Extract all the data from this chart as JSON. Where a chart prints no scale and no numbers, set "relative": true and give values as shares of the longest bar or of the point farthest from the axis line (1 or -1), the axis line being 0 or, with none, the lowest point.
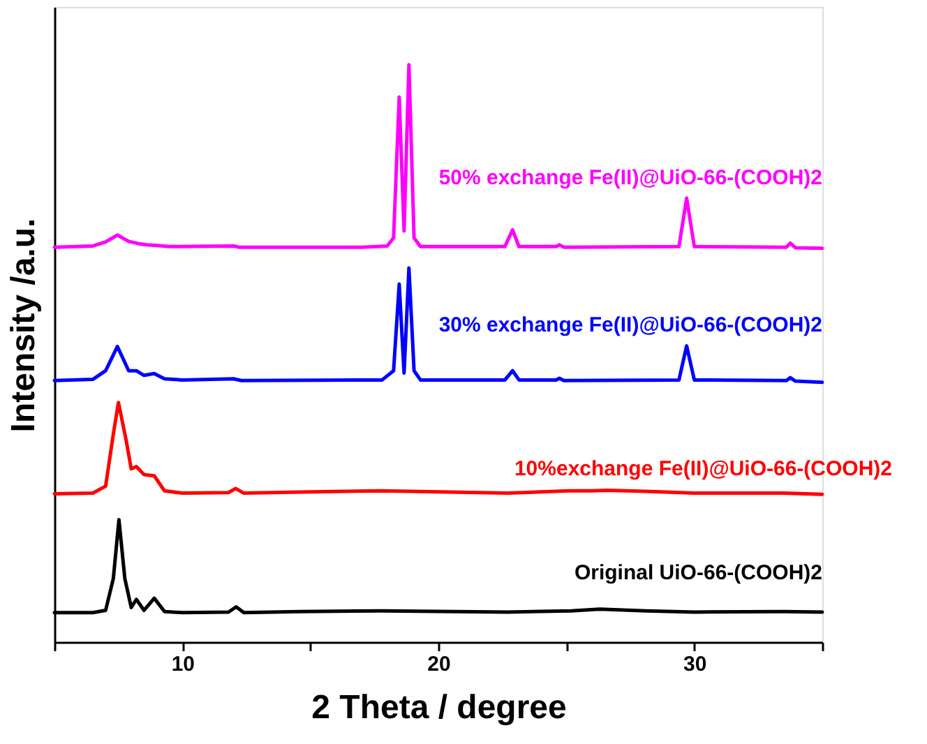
{
  "chart_data": {
    "type": "line",
    "relative": true,
    "xlabel": "2 Theta / degree",
    "ylabel": "Intensity /a.u.",
    "xlim": [
      5,
      35
    ],
    "xticks": [
      {
        "value": 5,
        "label": null
      },
      10,
      {
        "value": 15,
        "label": null
      },
      20,
      {
        "value": 25,
        "label": null
      },
      30,
      {
        "value": 35,
        "label": null
      }
    ],
    "grid": false,
    "legend": false,
    "marker": "none",
    "line_style": "solid",
    "series": [
      {
        "name": "Original UiO-66-(COOH)2",
        "color": "#000000",
        "x": [
          5,
          6.5,
          7.0,
          7.3,
          7.52,
          7.75,
          8.0,
          8.2,
          8.5,
          8.9,
          9.3,
          10,
          11.8,
          12.1,
          12.4,
          14.6,
          17.8,
          22.7,
          25.2,
          26.3,
          28.1,
          30,
          33.5,
          35
        ],
        "values": [
          0.051,
          0.051,
          0.055,
          0.11,
          0.212,
          0.11,
          0.06,
          0.074,
          0.055,
          0.076,
          0.053,
          0.051,
          0.052,
          0.061,
          0.051,
          0.053,
          0.054,
          0.052,
          0.054,
          0.057,
          0.054,
          0.052,
          0.053,
          0.052
        ]
      },
      {
        "name": "10%exchange Fe(II)@UiO-66-(COOH)2",
        "color": "#ff0000",
        "x": [
          5,
          6.5,
          7.0,
          7.3,
          7.5,
          7.8,
          8.0,
          8.2,
          8.5,
          8.9,
          9.3,
          10,
          11.8,
          12.08,
          12.4,
          14.6,
          17.78,
          22.7,
          25.1,
          26.0,
          26.6,
          28.1,
          30,
          33.5,
          35
        ],
        "values": [
          0.257,
          0.258,
          0.27,
          0.36,
          0.415,
          0.35,
          0.3,
          0.304,
          0.29,
          0.288,
          0.262,
          0.258,
          0.259,
          0.266,
          0.258,
          0.26,
          0.262,
          0.258,
          0.262,
          0.262,
          0.263,
          0.261,
          0.258,
          0.258,
          0.256
        ]
      },
      {
        "name": "30% exchange Fe(II)@UiO-66-(COOH)2",
        "color": "#0000ff",
        "x": [
          5,
          6.5,
          7.0,
          7.46,
          7.9,
          8.2,
          8.5,
          8.9,
          9.3,
          10,
          12.0,
          12.3,
          17.8,
          18.25,
          18.47,
          18.66,
          18.85,
          19.05,
          19.3,
          22.6,
          22.9,
          23.15,
          24.6,
          24.73,
          24.9,
          29.4,
          29.7,
          30.0,
          33.6,
          33.75,
          33.95,
          35
        ],
        "values": [
          0.453,
          0.455,
          0.47,
          0.512,
          0.47,
          0.47,
          0.462,
          0.465,
          0.456,
          0.454,
          0.456,
          0.453,
          0.454,
          0.47,
          0.62,
          0.466,
          0.648,
          0.47,
          0.454,
          0.454,
          0.47,
          0.454,
          0.454,
          0.457,
          0.453,
          0.454,
          0.513,
          0.454,
          0.453,
          0.458,
          0.452,
          0.45
        ]
      },
      {
        "name": "50% exchange Fe(II)@UiO-66-(COOH)2",
        "color": "#ff00ff",
        "x": [
          5,
          6.5,
          7.0,
          7.46,
          7.9,
          8.3,
          8.6,
          9.0,
          9.5,
          12.0,
          12.2,
          17.0,
          18.0,
          18.25,
          18.47,
          18.66,
          18.85,
          19.05,
          19.3,
          22.6,
          22.9,
          23.15,
          24.6,
          24.73,
          24.9,
          29.4,
          29.7,
          30.0,
          33.6,
          33.75,
          33.95,
          35
        ],
        "values": [
          0.684,
          0.686,
          0.693,
          0.705,
          0.694,
          0.69,
          0.688,
          0.687,
          0.685,
          0.686,
          0.684,
          0.684,
          0.686,
          0.7,
          0.944,
          0.712,
          1.0,
          0.7,
          0.685,
          0.685,
          0.714,
          0.685,
          0.685,
          0.688,
          0.684,
          0.685,
          0.769,
          0.685,
          0.684,
          0.691,
          0.683,
          0.682
        ]
      }
    ]
  }
}
